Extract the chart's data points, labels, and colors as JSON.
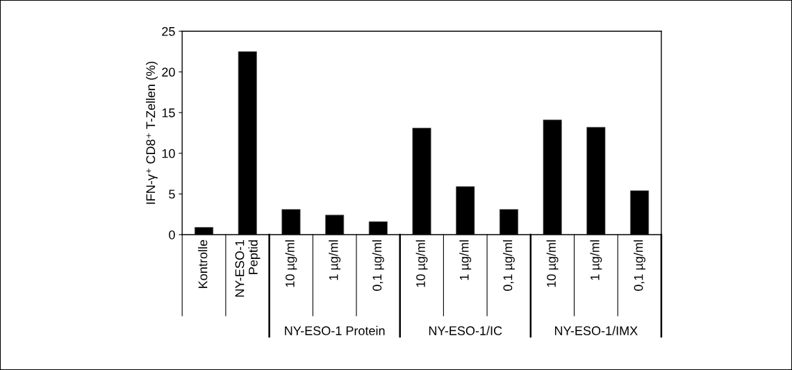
{
  "chart_data": {
    "type": "bar",
    "ylabel": "IFN-γ⁺ CD8⁺ T-Zellen (%)",
    "categories": [
      "Kontrolle",
      "NY-ESO-1\nPeptid",
      "10 µg/ml",
      "1 µg/ml",
      "0,1 µg/ml",
      "10 µg/ml",
      "1 µg/ml",
      "0,1 µg/ml",
      "10 µg/ml",
      "1 µg/ml",
      "0,1 µg/ml"
    ],
    "values": [
      0.9,
      22.5,
      3.1,
      2.4,
      1.6,
      13.1,
      5.9,
      3.1,
      14.1,
      13.2,
      5.4
    ],
    "color": "#000000",
    "ylim": [
      0,
      25
    ],
    "yticks": [
      0,
      5,
      10,
      15,
      20,
      25
    ],
    "grid": false,
    "legend": false,
    "annotations": [
      "NY-ESO-1 Protein",
      "NY-ESO-1/IC",
      "NY-ESO-1/IMX"
    ]
  }
}
